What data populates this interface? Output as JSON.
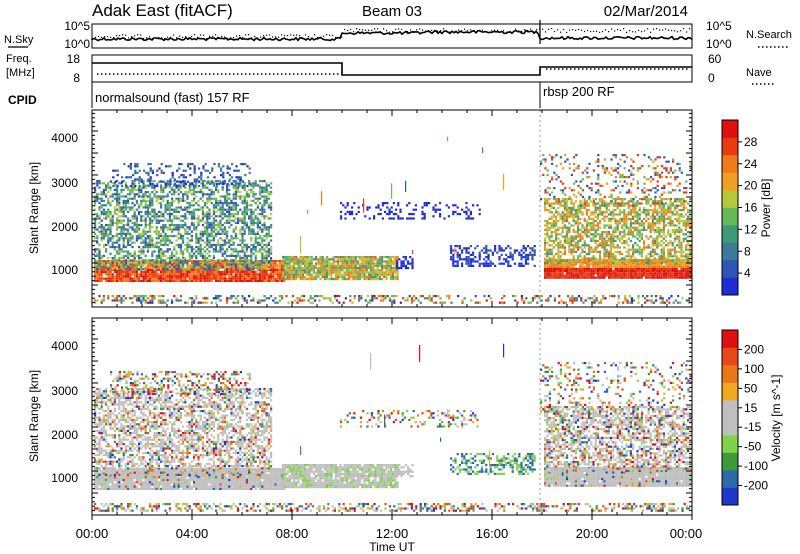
{
  "header": {
    "title": "Adak East (fitACF)",
    "beam": "Beam 03",
    "date": "02/Mar/2014"
  },
  "left_labels": {
    "nsky": "N.Sky",
    "freq_line1": "Freq.",
    "freq_line2": "[MHz]",
    "cpid": "CPID"
  },
  "right_labels": {
    "nsearch": "N.Search",
    "nave": "Nave"
  },
  "noise_axis": {
    "left_ticks": [
      "10^5",
      "10^0"
    ],
    "right_ticks": [
      "10^5",
      "10^0"
    ]
  },
  "freq_axis": {
    "left_ticks": [
      "18",
      "8"
    ],
    "right_ticks": [
      "60",
      "0"
    ]
  },
  "cpid_segments": [
    "normalsound (fast) 157 RF",
    "rbsp 200 RF"
  ],
  "x_axis": {
    "label": "Time UT",
    "ticks": [
      "00:00",
      "04:00",
      "08:00",
      "12:00",
      "16:00",
      "20:00",
      "00:00"
    ]
  },
  "colors": {
    "power": [
      "#1f2bd6",
      "#2f55b8",
      "#3b7a9a",
      "#3d9a74",
      "#66b85a",
      "#b5c83a",
      "#f0a020",
      "#f07a1a",
      "#e83a10",
      "#e01010"
    ],
    "velocity": [
      "#2038c8",
      "#2a6aa8",
      "#3c9a3c",
      "#7fd34a",
      "#bfbfbf",
      "#bfbfbf",
      "#f0a820",
      "#e87818",
      "#e84818",
      "#e01010"
    ]
  },
  "chart_data": [
    {
      "type": "heatmap",
      "title": "Power",
      "ylabel": "Slant Range [km]",
      "xlabel": "",
      "yticks": [
        "1000",
        "2000",
        "3000",
        "4000"
      ],
      "x_range": [
        "00:00",
        "24:00"
      ],
      "y_range": [
        180,
        4600
      ],
      "colorbar": {
        "label": "Power [dB]",
        "ticks": [
          "4",
          "8",
          "12",
          "16",
          "20",
          "24",
          "28"
        ]
      }
    },
    {
      "type": "heatmap",
      "title": "Velocity",
      "ylabel": "Slant Range [km]",
      "xlabel": "Time UT",
      "yticks": [
        "1000",
        "2000",
        "3000",
        "4000"
      ],
      "x_range": [
        "00:00",
        "24:00"
      ],
      "y_range": [
        180,
        4600
      ],
      "colorbar": {
        "label": "Velocity [m s^-1]",
        "ticks": [
          "200",
          "100",
          "50",
          "15",
          "-15",
          "-50",
          "-100",
          "-200"
        ]
      }
    }
  ]
}
